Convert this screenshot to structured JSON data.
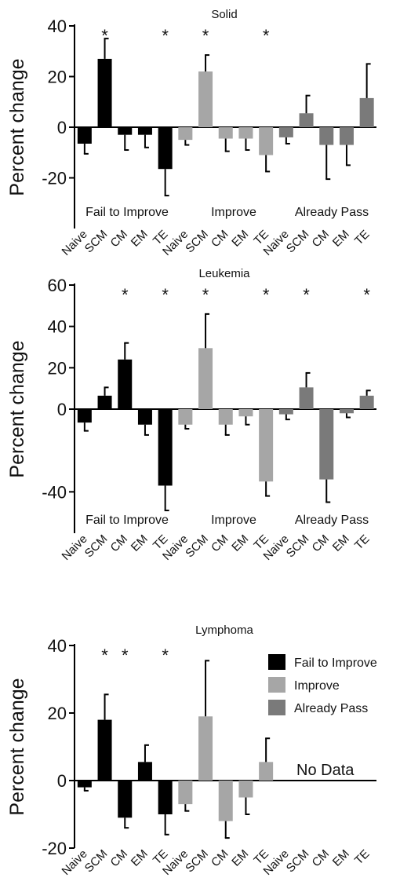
{
  "colors": {
    "fail_to_improve": "#000000",
    "improve": "#a6a6a6",
    "already_pass": "#7a7a7a",
    "axis": "#000000"
  },
  "group_labels": [
    "Fail to Improve",
    "Improve",
    "Already Pass"
  ],
  "legend": {
    "items": [
      "Fail to Improve",
      "Improve",
      "Already Pass"
    ]
  },
  "ylabel": "Percent change",
  "star_label": "*",
  "chart_data": [
    {
      "type": "bar",
      "title": "Solid",
      "ylabel": "Percent change",
      "ylim": [
        -40,
        40
      ],
      "yticks": [
        40,
        20,
        0,
        -20
      ],
      "categories": [
        "Naive",
        "SCM",
        "CM",
        "EM",
        "TE"
      ],
      "series": [
        {
          "name": "Fail to Improve",
          "values": [
            -6.5,
            27,
            -3,
            -3,
            -16.5
          ],
          "errors": [
            4,
            8,
            6,
            5,
            10.5
          ],
          "significant": [
            false,
            true,
            false,
            false,
            true
          ]
        },
        {
          "name": "Improve",
          "values": [
            -5,
            22,
            -4.5,
            -4.5,
            -11
          ],
          "errors": [
            2,
            6.5,
            5,
            4.5,
            6.5
          ],
          "significant": [
            false,
            true,
            false,
            false,
            true
          ]
        },
        {
          "name": "Already Pass",
          "values": [
            -4,
            5.5,
            -7,
            -7,
            11.5
          ],
          "errors": [
            2.5,
            7,
            13.5,
            8,
            13.5
          ],
          "significant": [
            false,
            false,
            false,
            false,
            false
          ]
        }
      ],
      "show_group_labels": true,
      "show_legend": false,
      "no_data_label": ""
    },
    {
      "type": "bar",
      "title": "Leukemia",
      "ylabel": "Percent change",
      "ylim": [
        -60,
        60
      ],
      "yticks": [
        60,
        40,
        20,
        0,
        -40
      ],
      "categories": [
        "Naive",
        "SCM",
        "CM",
        "EM",
        "TE"
      ],
      "series": [
        {
          "name": "Fail to Improve",
          "values": [
            -6.5,
            6.5,
            24,
            -7.5,
            -37
          ],
          "errors": [
            4,
            4,
            8,
            5,
            12
          ],
          "significant": [
            false,
            false,
            true,
            false,
            true
          ]
        },
        {
          "name": "Improve",
          "values": [
            -7.5,
            29.5,
            -7.5,
            -3.5,
            -35
          ],
          "errors": [
            2,
            16.5,
            5,
            4,
            7
          ],
          "significant": [
            false,
            true,
            false,
            false,
            true
          ]
        },
        {
          "name": "Already Pass",
          "values": [
            -2.5,
            10.5,
            -34,
            -2,
            6.5
          ],
          "errors": [
            2.5,
            7,
            11,
            2,
            2.5
          ],
          "significant": [
            false,
            true,
            false,
            false,
            true
          ]
        }
      ],
      "show_group_labels": true,
      "show_legend": false,
      "no_data_label": ""
    },
    {
      "type": "bar",
      "title": "Lymphoma",
      "ylabel": "Percent change",
      "ylim": [
        -20,
        40
      ],
      "yticks": [
        40,
        20,
        0,
        -20
      ],
      "categories": [
        "Naive",
        "SCM",
        "CM",
        "EM",
        "TE"
      ],
      "series": [
        {
          "name": "Fail to Improve",
          "values": [
            -2,
            18,
            -11,
            5.5,
            -10
          ],
          "errors": [
            1,
            7.5,
            3,
            5,
            6
          ],
          "significant": [
            false,
            true,
            true,
            false,
            true
          ]
        },
        {
          "name": "Improve",
          "values": [
            -7,
            19,
            -12,
            -5,
            5.5
          ],
          "errors": [
            2,
            16.5,
            5,
            5,
            7
          ],
          "significant": [
            false,
            false,
            false,
            false,
            false
          ]
        },
        {
          "name": "Already Pass",
          "values": [
            null,
            null,
            null,
            null,
            null
          ],
          "errors": [
            null,
            null,
            null,
            null,
            null
          ],
          "significant": [
            false,
            false,
            false,
            false,
            false
          ]
        }
      ],
      "show_group_labels": false,
      "show_legend": true,
      "no_data_label": "No Data"
    }
  ]
}
